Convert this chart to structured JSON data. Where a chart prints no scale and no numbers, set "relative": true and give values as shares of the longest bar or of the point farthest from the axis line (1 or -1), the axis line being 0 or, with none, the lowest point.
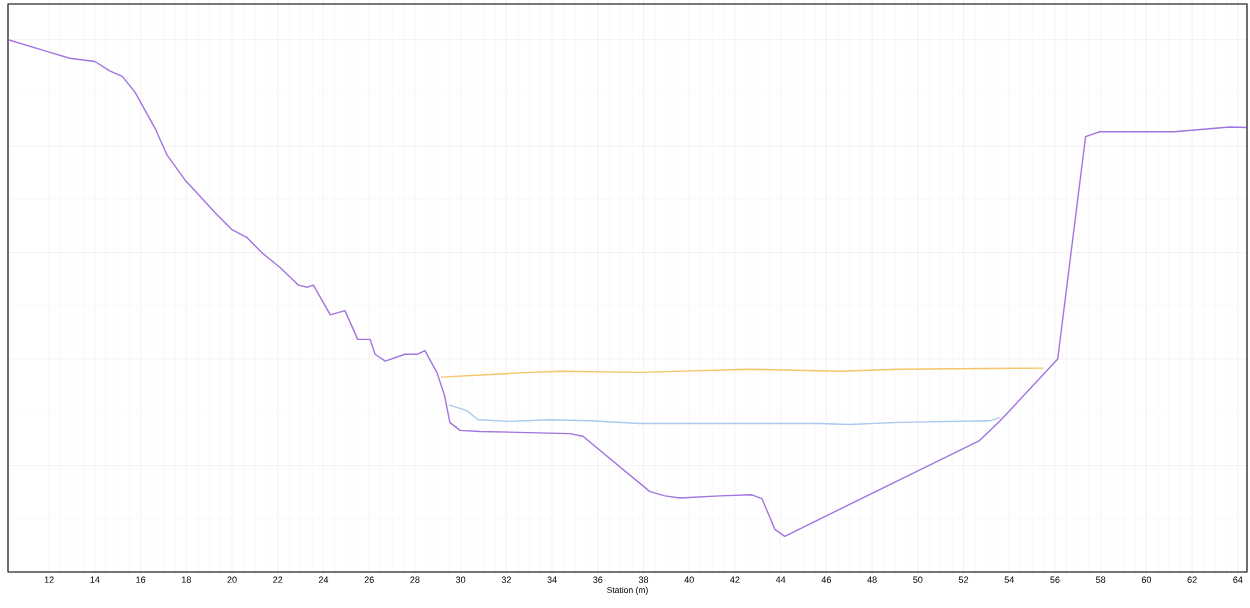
{
  "chart_data": {
    "type": "line",
    "relative": true,
    "xlabel": "Station (m)",
    "xlim": [
      10.2,
      64.4
    ],
    "xticks": [
      12,
      14,
      16,
      18,
      20,
      22,
      24,
      26,
      28,
      30,
      32,
      34,
      36,
      38,
      40,
      42,
      44,
      46,
      48,
      50,
      52,
      54,
      56,
      58,
      60,
      62,
      64
    ],
    "grid": true,
    "line_style": "solid",
    "marker": "none",
    "series": [
      {
        "color": "#a374e0",
        "x": [
          10.2,
          12.04,
          12.9,
          14.0,
          14.67,
          15.2,
          15.76,
          16.64,
          17.16,
          17.95,
          18.6,
          19.26,
          20.0,
          20.66,
          21.3,
          22.1,
          22.9,
          23.3,
          23.56,
          24.3,
          24.94,
          25.5,
          26.04,
          26.26,
          26.7,
          27.57,
          28.1,
          28.44,
          28.97,
          29.3,
          29.53,
          29.97,
          30.85,
          34.78,
          35.35,
          38.28,
          38.94,
          39.59,
          41.34,
          42.74,
          43.18,
          43.75,
          44.18,
          44.6,
          52.7,
          53.58,
          56.12,
          57.34,
          57.96,
          61.23,
          63.64,
          64.4
        ],
        "values": [
          1.0,
          0.976,
          0.965,
          0.959,
          0.941,
          0.931,
          0.901,
          0.833,
          0.783,
          0.736,
          0.706,
          0.675,
          0.643,
          0.628,
          0.6,
          0.572,
          0.539,
          0.535,
          0.539,
          0.483,
          0.491,
          0.437,
          0.437,
          0.409,
          0.396,
          0.409,
          0.409,
          0.416,
          0.374,
          0.331,
          0.281,
          0.266,
          0.264,
          0.26,
          0.255,
          0.151,
          0.143,
          0.139,
          0.143,
          0.145,
          0.138,
          0.08,
          0.067,
          0.076,
          0.247,
          0.283,
          0.4,
          0.818,
          0.827,
          0.827,
          0.836,
          0.835
        ]
      },
      {
        "color": "#f5c56a",
        "x": [
          29.14,
          32.6,
          34.35,
          37.84,
          42.65,
          46.59,
          49.2,
          55.5
        ],
        "values": [
          0.366,
          0.374,
          0.377,
          0.375,
          0.381,
          0.377,
          0.381,
          0.383
        ]
      },
      {
        "color": "#a9c9ee",
        "x": [
          29.49,
          30.28,
          30.76,
          32.16,
          33.9,
          35.66,
          37.84,
          42.65,
          45.7,
          47.0,
          49.2,
          53.15,
          53.58
        ],
        "values": [
          0.314,
          0.303,
          0.286,
          0.283,
          0.286,
          0.284,
          0.279,
          0.279,
          0.279,
          0.277,
          0.281,
          0.284,
          0.29
        ]
      }
    ]
  }
}
